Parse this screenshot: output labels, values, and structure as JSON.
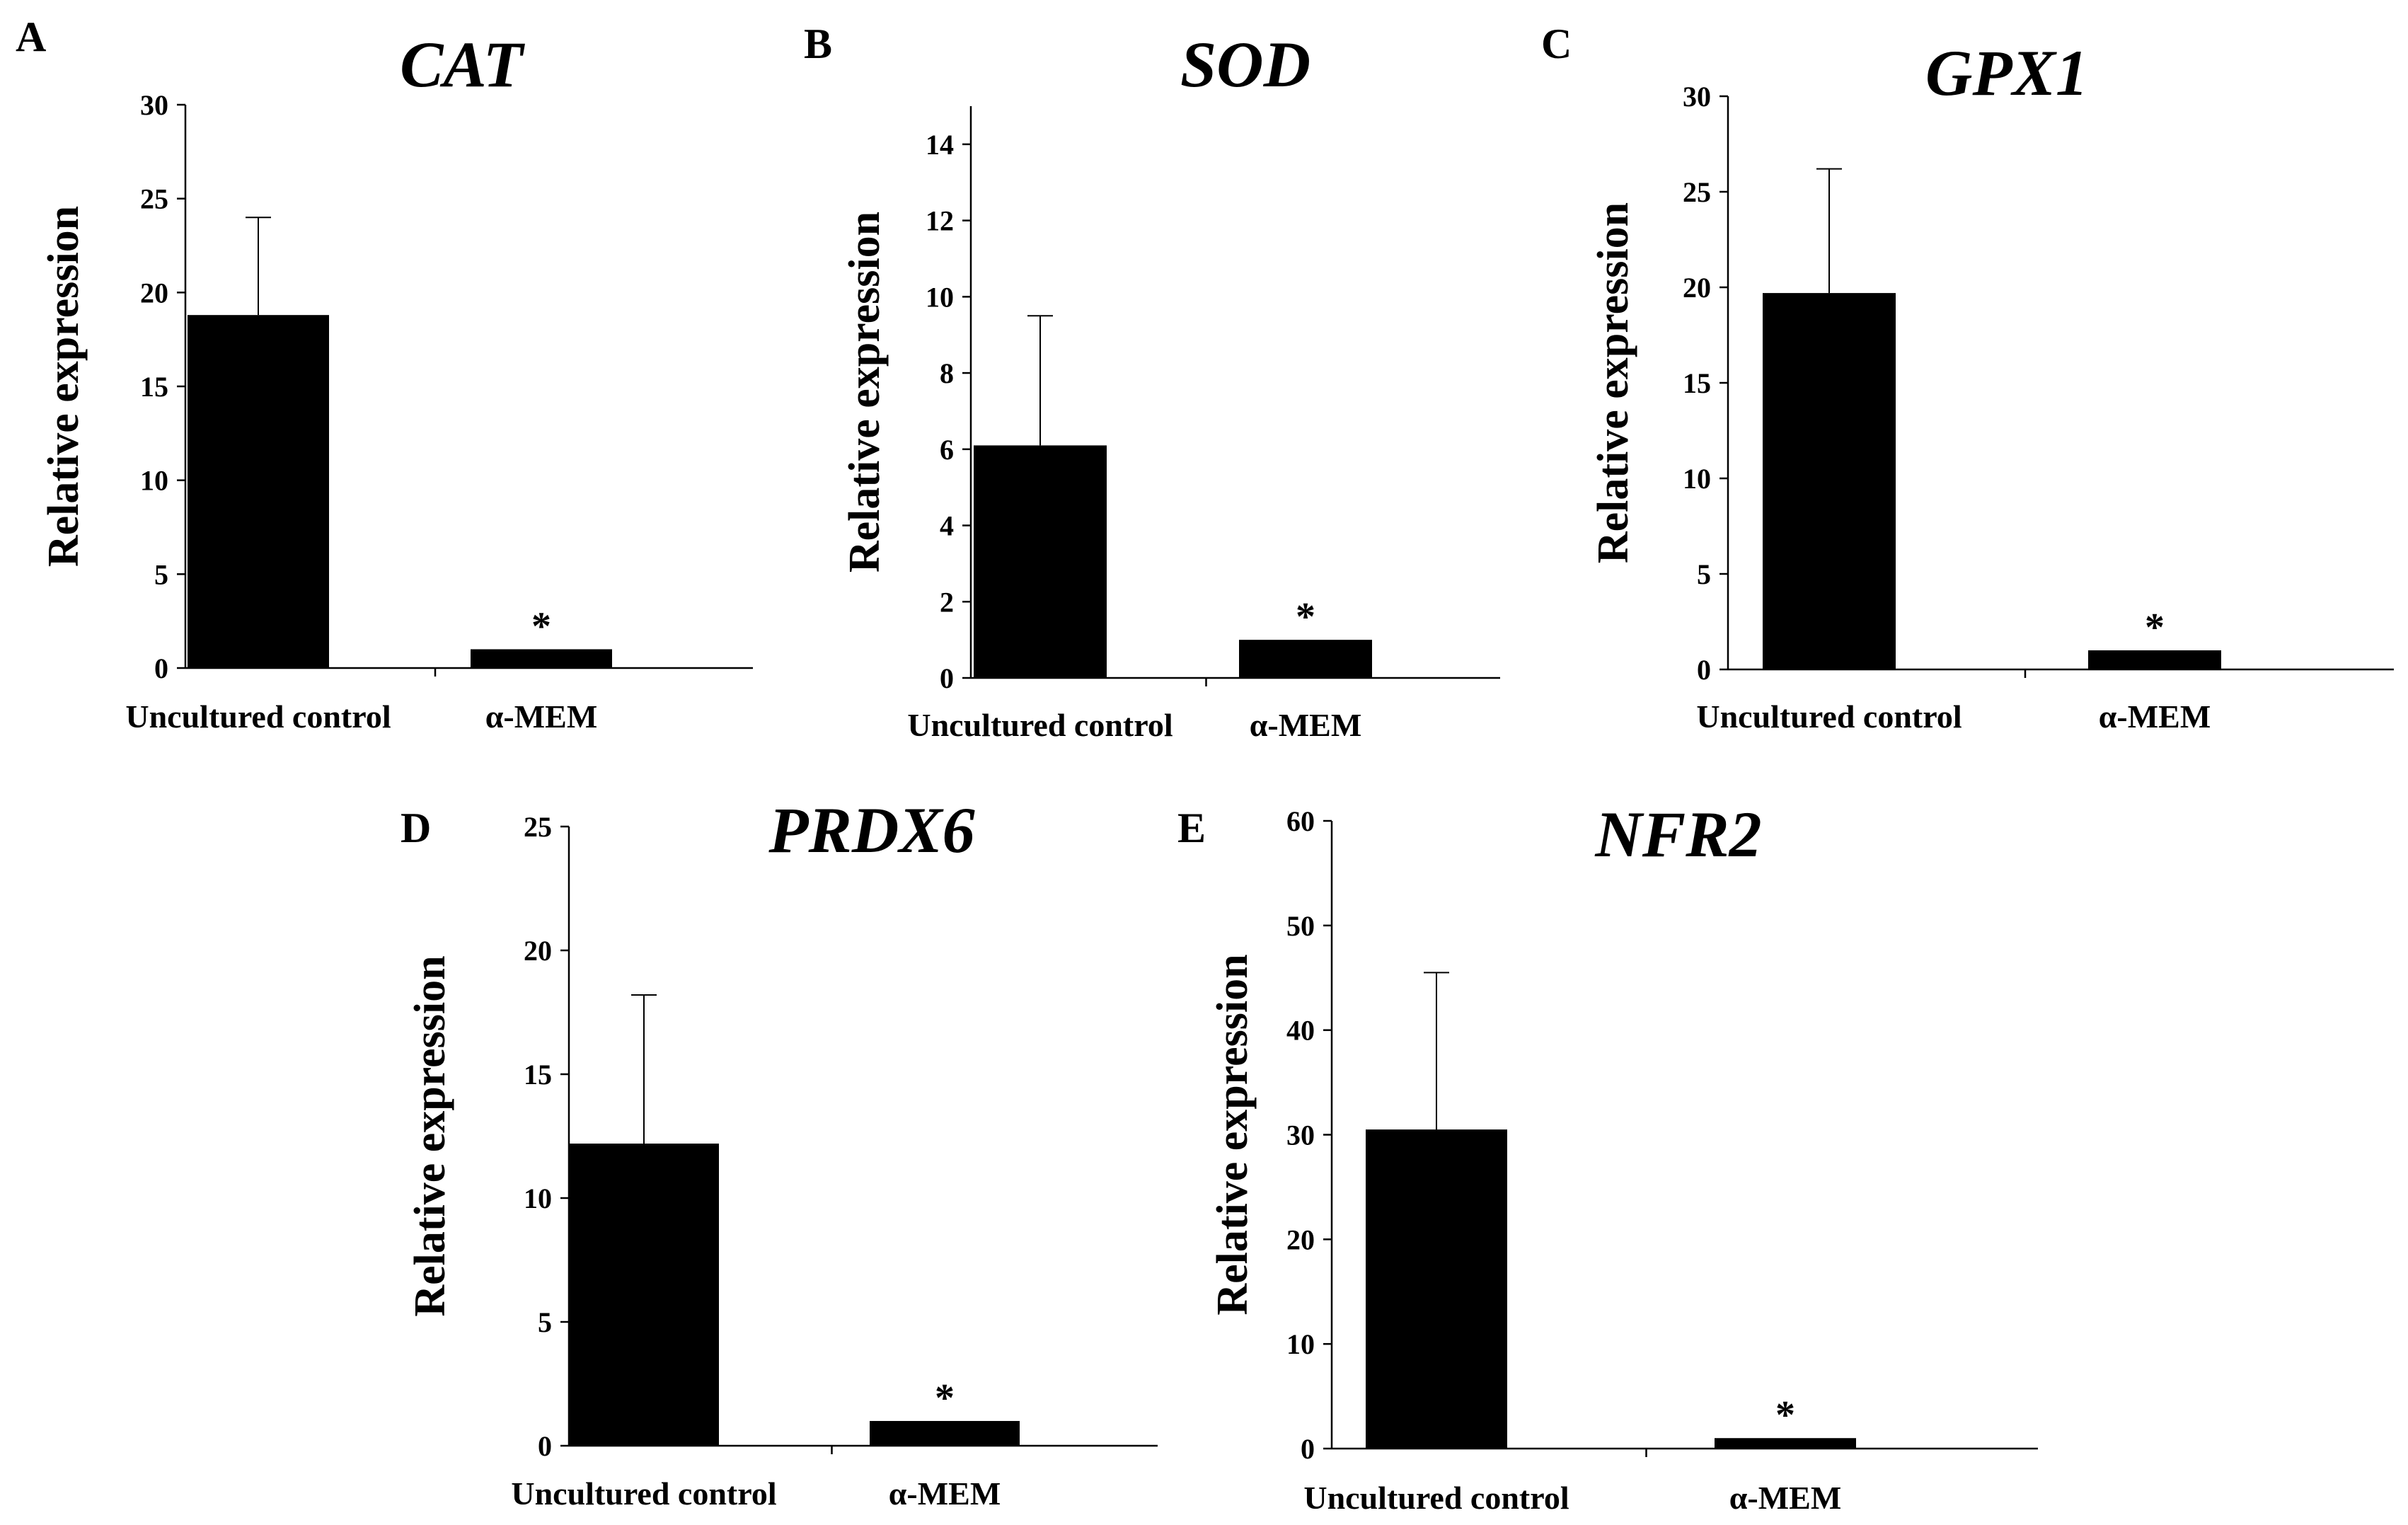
{
  "chart_data": [
    {
      "panel": "A",
      "type": "bar",
      "title": "CAT",
      "ylabel": "Relative expression",
      "xlabel": "",
      "categories": [
        "Uncultured control",
        "α-MEM"
      ],
      "values": [
        18.8,
        1.0
      ],
      "error_upper": [
        24.0,
        null
      ],
      "significance": [
        "",
        "*"
      ],
      "ylim": [
        0,
        30
      ],
      "yticks": [
        0,
        5,
        10,
        15,
        20,
        25,
        30
      ],
      "bar_color": "#000000"
    },
    {
      "panel": "B",
      "type": "bar",
      "title": "SOD",
      "ylabel": "Relative expression",
      "xlabel": "",
      "categories": [
        "Uncultured control",
        "α-MEM"
      ],
      "values": [
        6.1,
        1.0
      ],
      "error_upper": [
        9.5,
        null
      ],
      "significance": [
        "",
        "*"
      ],
      "ylim": [
        0,
        15
      ],
      "yticks": [
        0,
        2,
        4,
        6,
        8,
        10,
        12,
        14
      ],
      "bar_color": "#000000"
    },
    {
      "panel": "C",
      "type": "bar",
      "title": "GPX1",
      "ylabel": "Relative expression",
      "xlabel": "",
      "categories": [
        "Uncultured control",
        "α-MEM"
      ],
      "values": [
        19.7,
        1.0
      ],
      "error_upper": [
        26.2,
        null
      ],
      "significance": [
        "",
        "*"
      ],
      "ylim": [
        0,
        30
      ],
      "yticks": [
        0,
        5,
        10,
        15,
        20,
        25,
        30
      ],
      "bar_color": "#000000"
    },
    {
      "panel": "D",
      "type": "bar",
      "title": "PRDX6",
      "ylabel": "Relative expression",
      "xlabel": "",
      "categories": [
        "Uncultured control",
        "α-MEM"
      ],
      "values": [
        12.2,
        1.0
      ],
      "error_upper": [
        18.2,
        null
      ],
      "significance": [
        "",
        "*"
      ],
      "ylim": [
        0,
        25
      ],
      "yticks": [
        0,
        5,
        10,
        15,
        20,
        25
      ],
      "bar_color": "#000000"
    },
    {
      "panel": "E",
      "type": "bar",
      "title": "NFR2",
      "ylabel": "Relative expression",
      "xlabel": "",
      "categories": [
        "Uncultured control",
        "α-MEM"
      ],
      "values": [
        30.5,
        1.0
      ],
      "error_upper": [
        45.5,
        null
      ],
      "significance": [
        "",
        "*"
      ],
      "ylim": [
        0,
        60
      ],
      "yticks": [
        0,
        10,
        20,
        30,
        40,
        50,
        60
      ],
      "bar_color": "#000000"
    }
  ]
}
